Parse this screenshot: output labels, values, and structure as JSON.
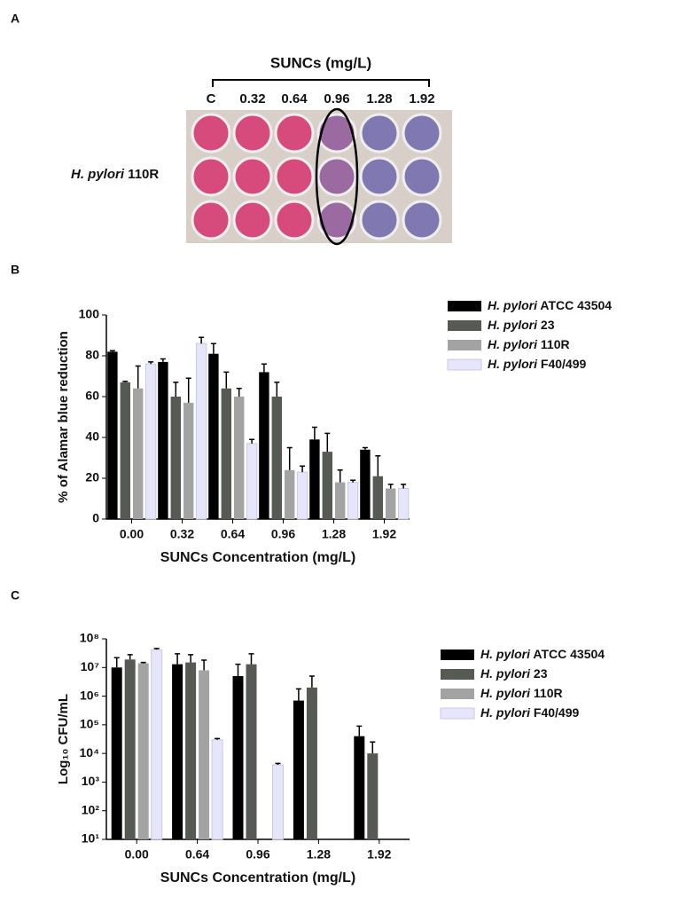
{
  "panel_a": {
    "label": "A",
    "title": "SUNCs (mg/L)",
    "columns": [
      "C",
      "0.32",
      "0.64",
      "0.96",
      "1.28",
      "1.92"
    ],
    "row_label": "H. pylori 110R"
  },
  "chart_data": [
    {
      "panel": "B",
      "type": "bar",
      "ylabel": "% of Alamar blue reduction",
      "xlabel": "SUNCs Concentration (mg/L)",
      "categories": [
        "0.00",
        "0.32",
        "0.64",
        "0.96",
        "1.28",
        "1.92"
      ],
      "series": [
        {
          "name": "H. pylori ATCC 43504",
          "color": "#000000",
          "values": [
            82,
            77,
            81,
            72,
            39,
            34
          ],
          "errors": [
            0.5,
            1.5,
            5,
            4,
            6,
            1
          ]
        },
        {
          "name": "H. pylori 23",
          "color": "#555a52",
          "values": [
            67,
            60,
            64,
            60,
            33,
            21
          ],
          "errors": [
            0.5,
            7,
            8,
            7,
            9,
            10
          ]
        },
        {
          "name": "H. pylori 110R",
          "color": "#a3a3a3",
          "values": [
            64,
            57,
            60,
            24,
            18,
            15
          ],
          "errors": [
            11,
            12,
            4,
            11,
            6,
            2
          ]
        },
        {
          "name": "H. pylori F40/499",
          "color": "#e6e6fa",
          "values": [
            76,
            86,
            37,
            23,
            18,
            15
          ],
          "errors": [
            1,
            3,
            2,
            3,
            1,
            2
          ]
        }
      ],
      "ylim": [
        0,
        100
      ],
      "yticks": [
        0,
        20,
        40,
        60,
        80,
        100
      ],
      "log": false
    },
    {
      "panel": "C",
      "type": "bar",
      "ylabel": "Log₁₀ CFU/mL",
      "xlabel": "SUNCs Concentration (mg/L)",
      "categories": [
        "0.00",
        "0.64",
        "0.96",
        "1.28",
        "1.92"
      ],
      "series": [
        {
          "name": "H. pylori ATCC 43504",
          "color": "#000000",
          "values": [
            10000000,
            13000000,
            5000000,
            700000,
            40000
          ],
          "errors": [
            12000000,
            17000000,
            8000000,
            1100000,
            50000
          ]
        },
        {
          "name": "H. pylori 23",
          "color": "#555a52",
          "values": [
            19000000,
            15000000,
            13000000,
            2000000,
            10000
          ],
          "errors": [
            9000000,
            13000000,
            17000000,
            3000000,
            15000
          ]
        },
        {
          "name": "H. pylori 110R",
          "color": "#a3a3a3",
          "values": [
            14000000,
            8000000,
            null,
            null,
            null
          ],
          "errors": [
            1000000,
            10000000,
            null,
            null,
            null
          ]
        },
        {
          "name": "H. pylori F40/499",
          "color": "#e6e6fa",
          "values": [
            42000000,
            30000,
            4000,
            null,
            null
          ],
          "errors": [
            4000000,
            3000,
            500,
            null,
            null
          ]
        }
      ],
      "ylim": [
        10,
        100000000
      ],
      "yticks": [
        {
          "value": 10,
          "label": "10¹"
        },
        {
          "value": 100,
          "label": "10²"
        },
        {
          "value": 1000,
          "label": "10³"
        },
        {
          "value": 10000,
          "label": "10⁴"
        },
        {
          "value": 100000,
          "label": "10⁵"
        },
        {
          "value": 1000000,
          "label": "10⁶"
        },
        {
          "value": 10000000,
          "label": "10⁷"
        },
        {
          "value": 100000000,
          "label": "10⁸"
        }
      ],
      "log": true
    }
  ]
}
